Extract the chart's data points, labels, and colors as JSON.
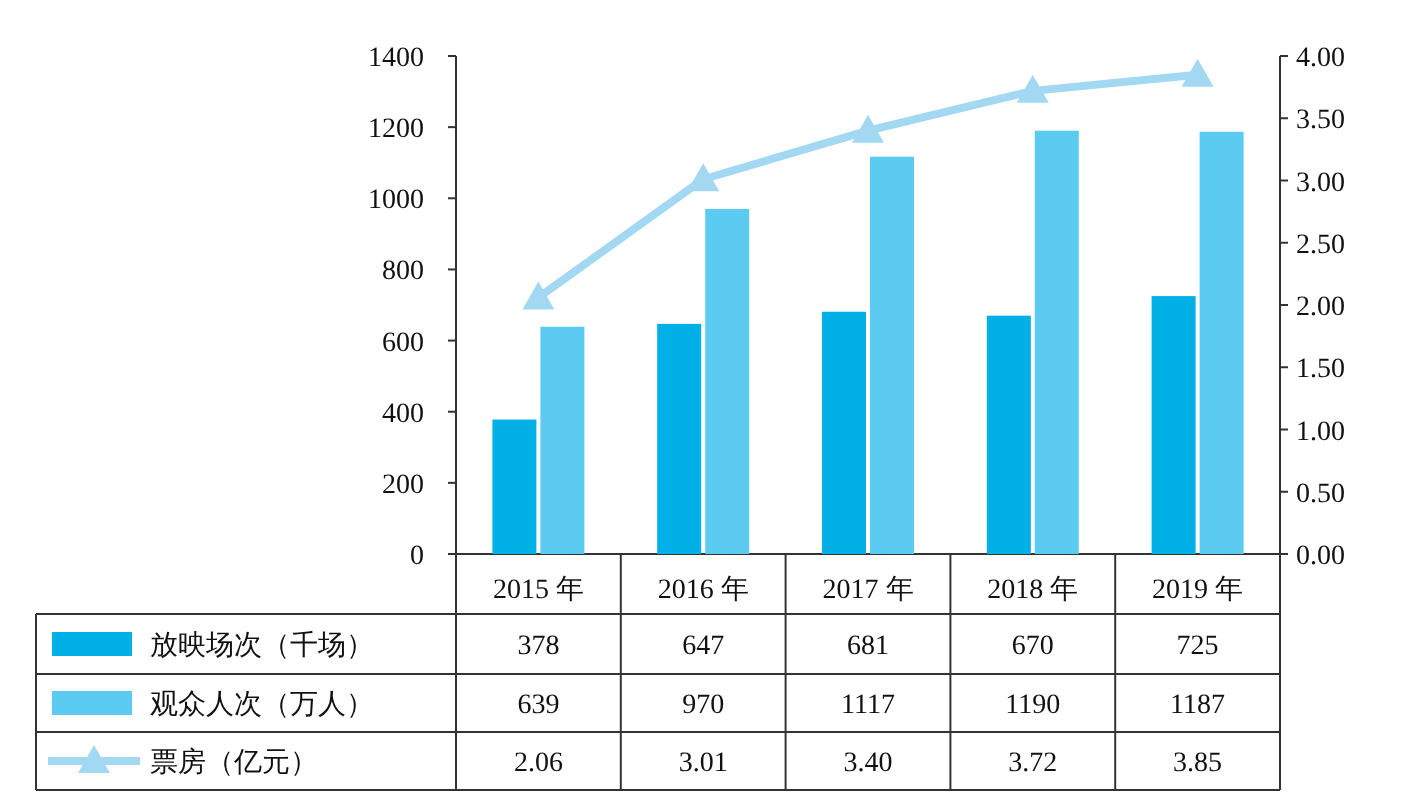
{
  "chart_data": {
    "type": "bar",
    "categories": [
      "2015 年",
      "2016 年",
      "2017 年",
      "2018 年",
      "2019 年"
    ],
    "series": [
      {
        "name": "放映场次（千场）",
        "color": "#00b0e6",
        "values": [
          378,
          647,
          681,
          670,
          725
        ]
      },
      {
        "name": "观众人次（万人）",
        "color": "#5ccbf2",
        "values": [
          639,
          970,
          1117,
          1190,
          1187
        ]
      },
      {
        "name": "票房（亿元）",
        "type": "line",
        "axis": "y2",
        "color": "#a3d8f2",
        "marker": "triangle",
        "values": [
          2.06,
          3.01,
          3.4,
          3.72,
          3.85
        ],
        "value_labels": [
          "2.06",
          "3.01",
          "3.40",
          "3.72",
          "3.85"
        ]
      }
    ],
    "ylim": [
      0,
      1400
    ],
    "yticks": [
      0,
      200,
      400,
      600,
      800,
      1000,
      1200,
      1400
    ],
    "y2lim": [
      0,
      4
    ],
    "y2ticks": [
      {
        "value": 0,
        "label": "0.00"
      },
      {
        "value": 0.5,
        "label": "0.50"
      },
      {
        "value": 1,
        "label": "1.00"
      },
      {
        "value": 1.5,
        "label": "1.50"
      },
      {
        "value": 2,
        "label": "2.00"
      },
      {
        "value": 2.5,
        "label": "2.50"
      },
      {
        "value": 3,
        "label": "3.00"
      },
      {
        "value": 3.5,
        "label": "3.50"
      },
      {
        "value": 4,
        "label": "4.00"
      }
    ],
    "data_labels": true,
    "legend": "bottom",
    "grid": false
  }
}
